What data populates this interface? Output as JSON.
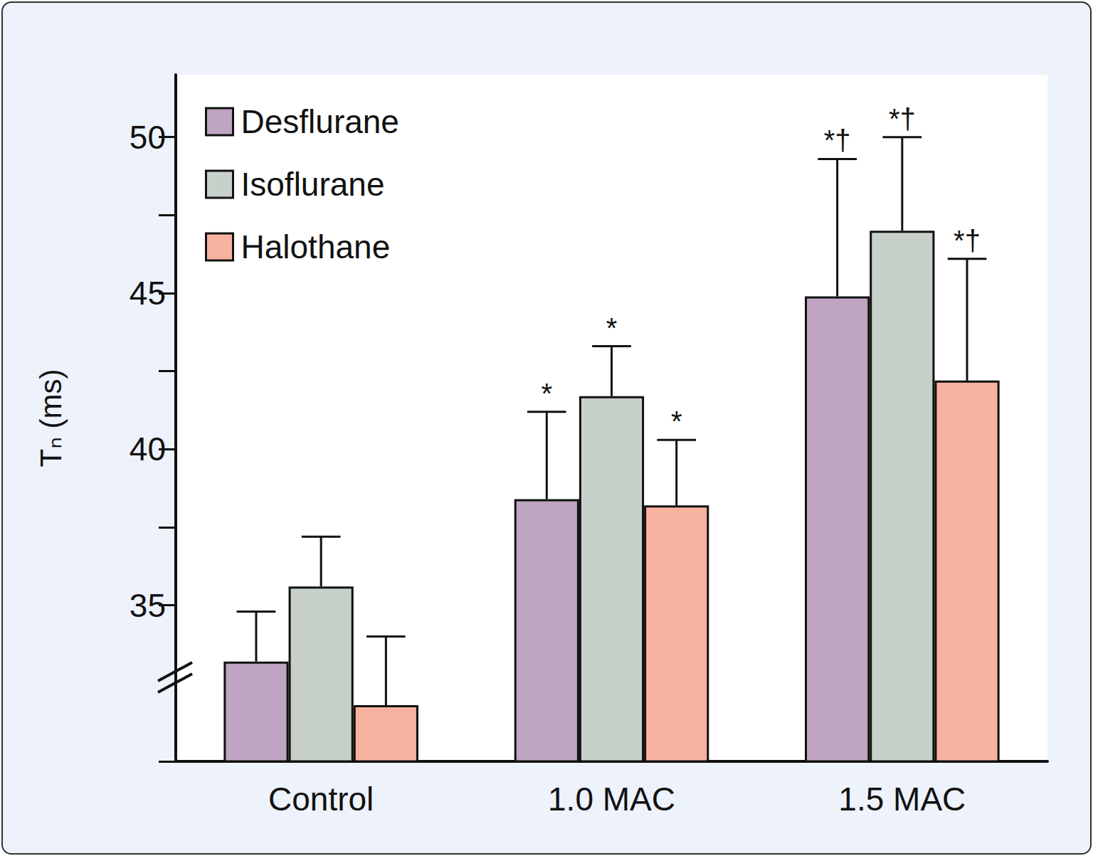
{
  "chart_data": {
    "type": "bar",
    "y_label": "Tₙ (ms)",
    "categories": [
      "Control",
      "1.0 MAC",
      "1.5 MAC"
    ],
    "series": [
      {
        "name": "Desflurane",
        "color": "#bfa5c1",
        "values": [
          33.2,
          38.4,
          44.9
        ],
        "errors": [
          1.6,
          2.8,
          4.4
        ],
        "annotations": [
          null,
          "*",
          "*†"
        ]
      },
      {
        "name": "Isoflurane",
        "color": "#c8d1c9",
        "values": [
          35.6,
          41.7,
          47.0
        ],
        "errors": [
          1.6,
          1.6,
          3.0
        ],
        "annotations": [
          null,
          "*",
          "*†"
        ]
      },
      {
        "name": "Halothane",
        "color": "#f8b2a0",
        "values": [
          31.8,
          38.2,
          42.2
        ],
        "errors": [
          2.2,
          2.1,
          3.9
        ],
        "annotations": [
          null,
          "*",
          "*†"
        ]
      }
    ],
    "ylim": [
      30,
      52
    ],
    "yticks": [
      35,
      40,
      45,
      50
    ],
    "legend": "upper left",
    "grid": false
  }
}
